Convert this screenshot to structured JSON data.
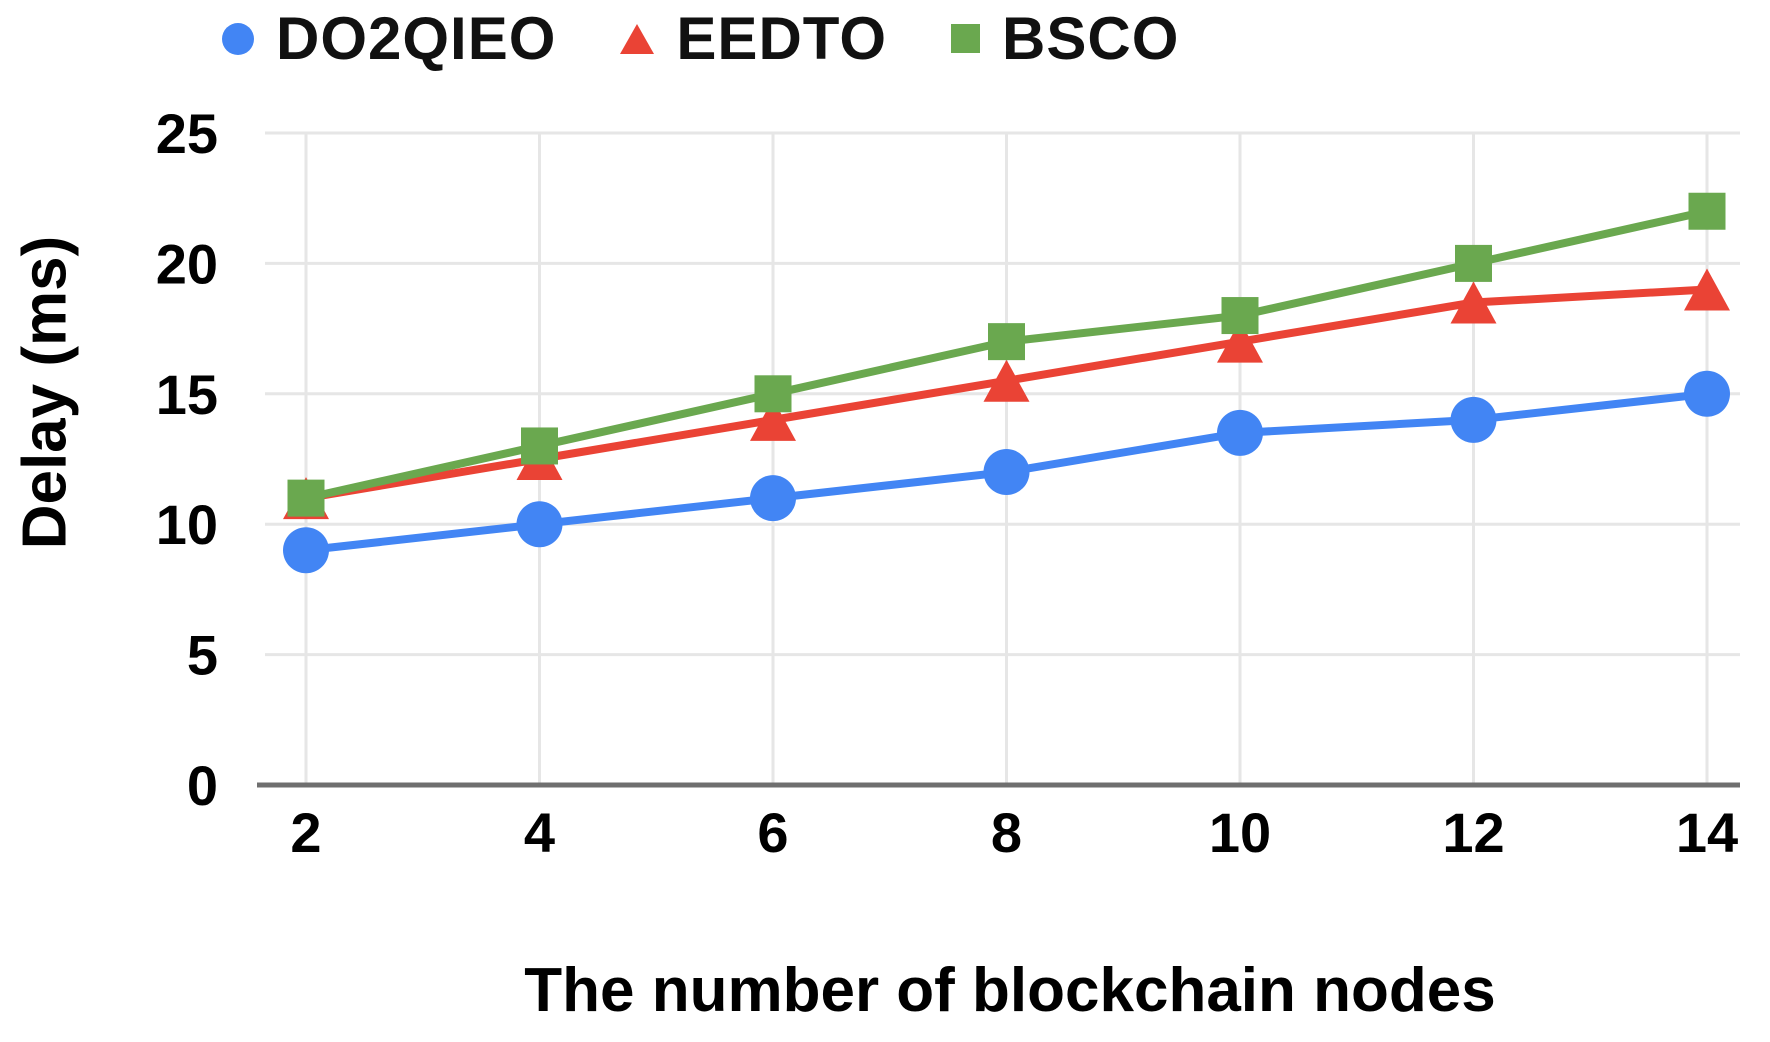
{
  "figure": {
    "y_axis_title": "Delay (ms)",
    "x_axis_title": "The number of blockchain nodes"
  },
  "chart_data": {
    "type": "line",
    "title": "",
    "xlabel": "The number of blockchain nodes",
    "ylabel": "Delay (ms)",
    "x": [
      2,
      4,
      6,
      8,
      10,
      12,
      14
    ],
    "x_tick_labels": [
      "2",
      "4",
      "6",
      "8",
      "10",
      "12",
      "14"
    ],
    "y_tick_labels": [
      "0",
      "5",
      "10",
      "15",
      "20",
      "25"
    ],
    "y_tick_values": [
      0,
      5,
      10,
      15,
      20,
      25
    ],
    "xlim": [
      2,
      14
    ],
    "ylim": [
      0,
      25
    ],
    "grid": true,
    "legend_position": "top",
    "series": [
      {
        "name": "DO2QIEO",
        "marker": "circle",
        "color": "#4285F4",
        "values": [
          9,
          10,
          11,
          12,
          13.5,
          14,
          15
        ]
      },
      {
        "name": "EEDTO",
        "marker": "triangle",
        "color": "#EA4335",
        "values": [
          11,
          12.5,
          14,
          15.5,
          17,
          18.5,
          19
        ]
      },
      {
        "name": "BSCO",
        "marker": "square",
        "color": "#6AA84F",
        "values": [
          11,
          13,
          15,
          17,
          18,
          20,
          22
        ]
      }
    ],
    "colors": {
      "gridline": "#e6e6e6",
      "axis_line": "#6f6f6f",
      "tick_text": "#000000",
      "background": "#ffffff"
    }
  }
}
